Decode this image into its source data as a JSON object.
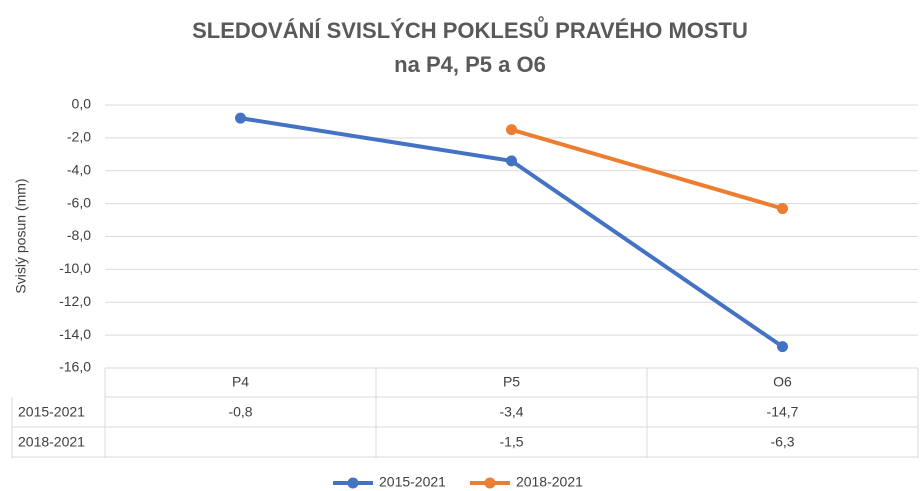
{
  "chart_data": {
    "type": "line",
    "title": [
      "SLEDOVÁNÍ SVISLÝCH POKLESŮ PRAVÉHO MOSTU",
      "na P4, P5 a O6"
    ],
    "ylabel": "Svislý posun (mm)",
    "categories": [
      "P4",
      "P5",
      "O6"
    ],
    "series": [
      {
        "name": "2015-2021",
        "color": "#4472c4",
        "values": [
          -0.8,
          -3.4,
          -14.7
        ],
        "value_labels": [
          "-0,8",
          "-3,4",
          "-14,7"
        ]
      },
      {
        "name": "2018-2021",
        "color": "#ed7d31",
        "values": [
          null,
          -1.5,
          -6.3
        ],
        "value_labels": [
          null,
          "-1,5",
          "-6,3"
        ]
      }
    ],
    "ylim": [
      -16,
      0
    ],
    "yticks": [
      {
        "value": 0,
        "label": "0,0"
      },
      {
        "value": -2,
        "label": "-2,0"
      },
      {
        "value": -4,
        "label": "-4,0"
      },
      {
        "value": -6,
        "label": "-6,0"
      },
      {
        "value": -8,
        "label": "-8,0"
      },
      {
        "value": -10,
        "label": "-10,0"
      },
      {
        "value": -12,
        "label": "-12,0"
      },
      {
        "value": -14,
        "label": "-14,0"
      },
      {
        "value": -16,
        "label": "-16,0"
      }
    ],
    "grid": true
  }
}
